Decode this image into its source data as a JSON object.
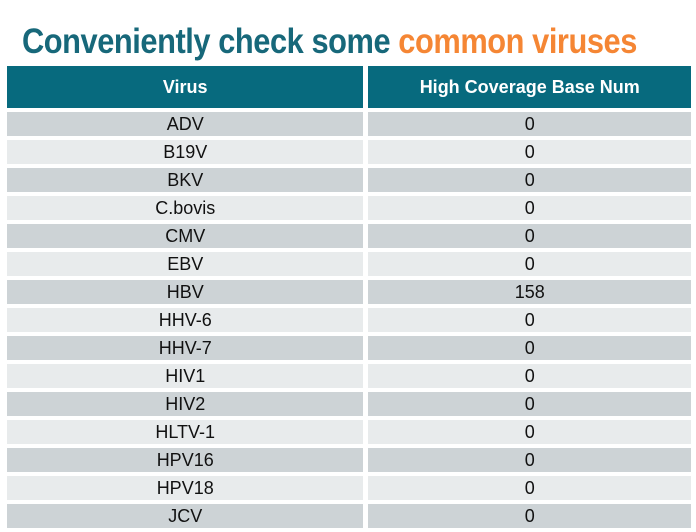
{
  "title": {
    "part1": "Conveniently check some",
    "part2": "common viruses"
  },
  "colors": {
    "title_teal": "#17687a",
    "title_orange": "#f58634",
    "header_bg": "#076a7e",
    "header_text": "#ffffff",
    "row_dark": "#cdd3d6",
    "row_light": "#e8ebec",
    "cell_text": "#111111"
  },
  "table": {
    "headers": [
      "Virus",
      "High Coverage Base Num"
    ],
    "rows": [
      {
        "virus": "ADV",
        "value": "0"
      },
      {
        "virus": "B19V",
        "value": "0"
      },
      {
        "virus": "BKV",
        "value": "0"
      },
      {
        "virus": "C.bovis",
        "value": "0"
      },
      {
        "virus": "CMV",
        "value": "0"
      },
      {
        "virus": "EBV",
        "value": "0"
      },
      {
        "virus": "HBV",
        "value": "158"
      },
      {
        "virus": "HHV-6",
        "value": "0"
      },
      {
        "virus": "HHV-7",
        "value": "0"
      },
      {
        "virus": "HIV1",
        "value": "0"
      },
      {
        "virus": "HIV2",
        "value": "0"
      },
      {
        "virus": "HLTV-1",
        "value": "0"
      },
      {
        "virus": "HPV16",
        "value": "0"
      },
      {
        "virus": "HPV18",
        "value": "0"
      },
      {
        "virus": "JCV",
        "value": "0"
      }
    ]
  }
}
